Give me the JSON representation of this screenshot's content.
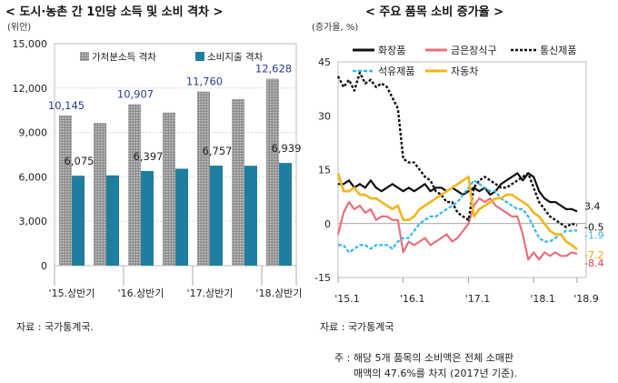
{
  "left": {
    "title": "< 도시·농촌 간 1인당 소득 및 소비 격차 >",
    "unit": "(위안)",
    "source": "자료 : 국가통계국.",
    "legend": [
      "가처분소득 격차",
      "소비지출 격차"
    ]
  },
  "right": {
    "title": "< 주요 품목 소비 증가율 >",
    "unit": "(증가율, %)",
    "source": "자료 : 국가통계국",
    "note_line1": "주 : 해당 5개 품목의 소비액은 전체 소매판",
    "note_line2": "매액의 47.6%를 차지 (2017년 기준).",
    "legend": [
      "화장품",
      "금은장식구",
      "통신제품",
      "석유제품",
      "자동차"
    ]
  },
  "colors": {
    "income_bar": "#a6a6a6",
    "spend_bar": "#1f7ea0",
    "cosmetics": "#111111",
    "jewelry": "#e8707a",
    "telecom": "#111111",
    "petroleum": "#3ab5e8",
    "auto": "#f2b51b",
    "label_blue": "#2a3f8c"
  },
  "chart_data": [
    {
      "type": "bar",
      "title": "< 도시·농촌 간 1인당 소득 및 소비 격차 >",
      "ylabel": "(위안)",
      "ylim": [
        0,
        15000
      ],
      "yticks": [
        0,
        3000,
        6000,
        9000,
        12000,
        15000
      ],
      "grid": true,
      "legend_position": "top",
      "periods": [
        "'15.상반기",
        "",
        "'16.상반기",
        "",
        "'17.상반기",
        "",
        "'18.상반기"
      ],
      "series": [
        {
          "name": "가처분소득 격차",
          "values": [
            10145,
            9650,
            10907,
            10350,
            11760,
            11250,
            12628
          ]
        },
        {
          "name": "소비지출 격차",
          "values": [
            6075,
            6100,
            6397,
            6550,
            6757,
            6750,
            6939
          ]
        }
      ],
      "data_labels": {
        "가처분소득 격차": [
          "10,145",
          null,
          "10,907",
          null,
          "11,760",
          null,
          "12,628"
        ],
        "소비지출 격차": [
          "6,075",
          null,
          "6,397",
          null,
          "6,757",
          null,
          "6,939"
        ]
      }
    },
    {
      "type": "line",
      "title": "< 주요 품목 소비 증가율 >",
      "ylabel": "(증가율, %)",
      "ylim": [
        -15,
        45
      ],
      "yticks": [
        -15,
        0,
        15,
        30,
        45
      ],
      "xticks": [
        "'15.1",
        "'16.1",
        "'17.1",
        "'18.1",
        "'18.9"
      ],
      "legend_position": "top",
      "x_months": [
        0,
        1,
        2,
        3,
        4,
        5,
        6,
        7,
        8,
        9,
        10,
        11,
        12,
        13,
        14,
        15,
        16,
        17,
        18,
        19,
        20,
        21,
        22,
        23,
        24,
        25,
        26,
        27,
        28,
        29,
        30,
        31,
        32,
        33,
        34,
        35,
        36,
        37,
        38,
        39,
        40,
        41,
        42,
        43,
        44
      ],
      "series": [
        {
          "name": "화장품",
          "end_label": "3.4",
          "values": [
            11,
            11,
            12,
            10,
            11,
            10,
            12,
            10,
            9,
            10,
            11,
            10,
            9,
            10,
            9,
            10,
            11,
            9,
            10,
            10,
            9,
            10,
            9,
            8,
            9,
            10,
            9,
            10,
            8,
            9,
            11,
            12,
            13,
            14,
            12,
            14,
            13,
            9,
            7,
            6,
            6,
            5,
            4,
            4,
            3.4
          ]
        },
        {
          "name": "금은장식구",
          "end_label": "-8.4",
          "values": [
            -3,
            3,
            6,
            4,
            5,
            3,
            4,
            1,
            2,
            2,
            1,
            1,
            -8,
            -5,
            -6,
            -5,
            -4,
            -6,
            -5,
            -4,
            -3,
            -5,
            -4,
            -2,
            0,
            5,
            7,
            6,
            7,
            5,
            4,
            3,
            2,
            2,
            -3,
            -10,
            -8,
            -10,
            -8,
            -9,
            -8,
            -9,
            -9,
            -8,
            -8.4
          ]
        },
        {
          "name": "통신제품",
          "end_label": "-0.5",
          "values": [
            41,
            38,
            40,
            37,
            42,
            39,
            40,
            38,
            39,
            38,
            35,
            32,
            18,
            17,
            17,
            15,
            13,
            12,
            9,
            8,
            6,
            6,
            3,
            2,
            1,
            10,
            12,
            13,
            12,
            11,
            10,
            10,
            11,
            12,
            13,
            14,
            10,
            6,
            4,
            2,
            1,
            0,
            -1,
            0,
            -0.5
          ]
        },
        {
          "name": "석유제품",
          "end_label": "-1.9",
          "values": [
            -6,
            -6,
            -8,
            -7,
            -6,
            -6,
            -7,
            -6,
            -6,
            -6,
            -7,
            -5,
            -4,
            -4,
            -2,
            0,
            1,
            2,
            2,
            3,
            4,
            5,
            6,
            8,
            10,
            12,
            11,
            10,
            9,
            9,
            7,
            6,
            5,
            4,
            4,
            2,
            -1,
            -4,
            -5,
            -5,
            -4,
            -3,
            -2,
            -2,
            -1.9
          ]
        },
        {
          "name": "자동차",
          "end_label": "-7.2",
          "values": [
            14,
            9,
            9,
            10,
            8,
            8,
            7,
            7,
            6,
            5,
            4,
            5,
            1,
            1,
            2,
            4,
            5,
            6,
            7,
            8,
            9,
            10,
            11,
            12,
            13,
            2,
            4,
            5,
            6,
            7,
            7,
            8,
            8,
            7,
            6,
            5,
            3,
            2,
            0,
            -2,
            -3,
            -3,
            -5,
            -6,
            -7.2
          ]
        }
      ]
    }
  ]
}
